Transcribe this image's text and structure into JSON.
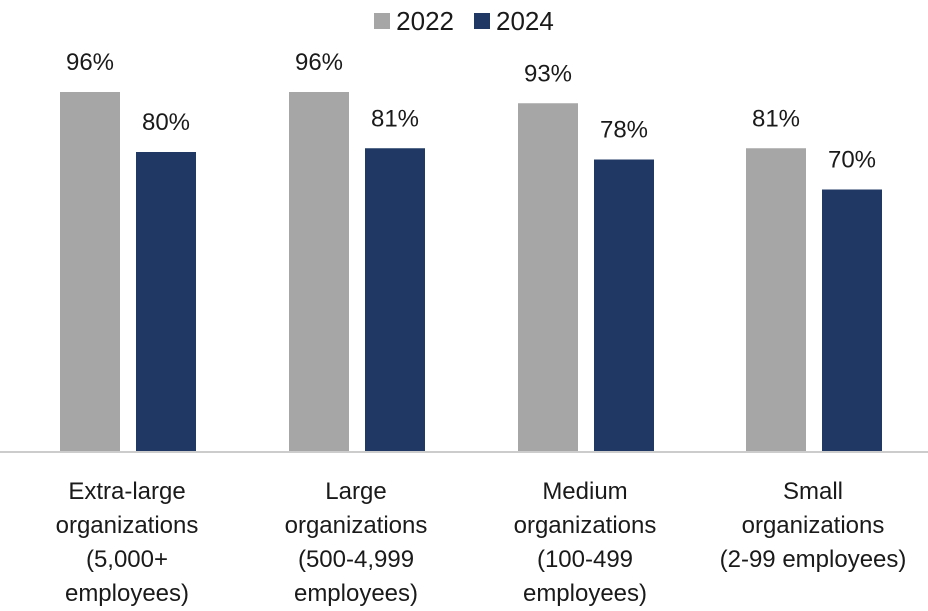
{
  "chart_data": {
    "type": "bar",
    "categories": [
      "Extra-large\norganizations\n(5,000+\nemployees)",
      "Large\norganizations\n(500-4,999\nemployees)",
      "Medium\norganizations\n(100-499\nemployees)",
      "Small\norganizations\n(2-99 employees)"
    ],
    "series": [
      {
        "name": "2022",
        "values": [
          96,
          96,
          93,
          81
        ],
        "labels": [
          "96%",
          "96%",
          "93%",
          "81%"
        ],
        "color": "#a6a6a6"
      },
      {
        "name": "2024",
        "values": [
          80,
          81,
          78,
          70
        ],
        "labels": [
          "80%",
          "81%",
          "78%",
          "70%"
        ],
        "color": "#1f3864"
      }
    ],
    "title": "",
    "xlabel": "",
    "ylabel": "",
    "ylim": [
      0,
      100
    ],
    "grid": false,
    "legend_position": "top-center"
  }
}
